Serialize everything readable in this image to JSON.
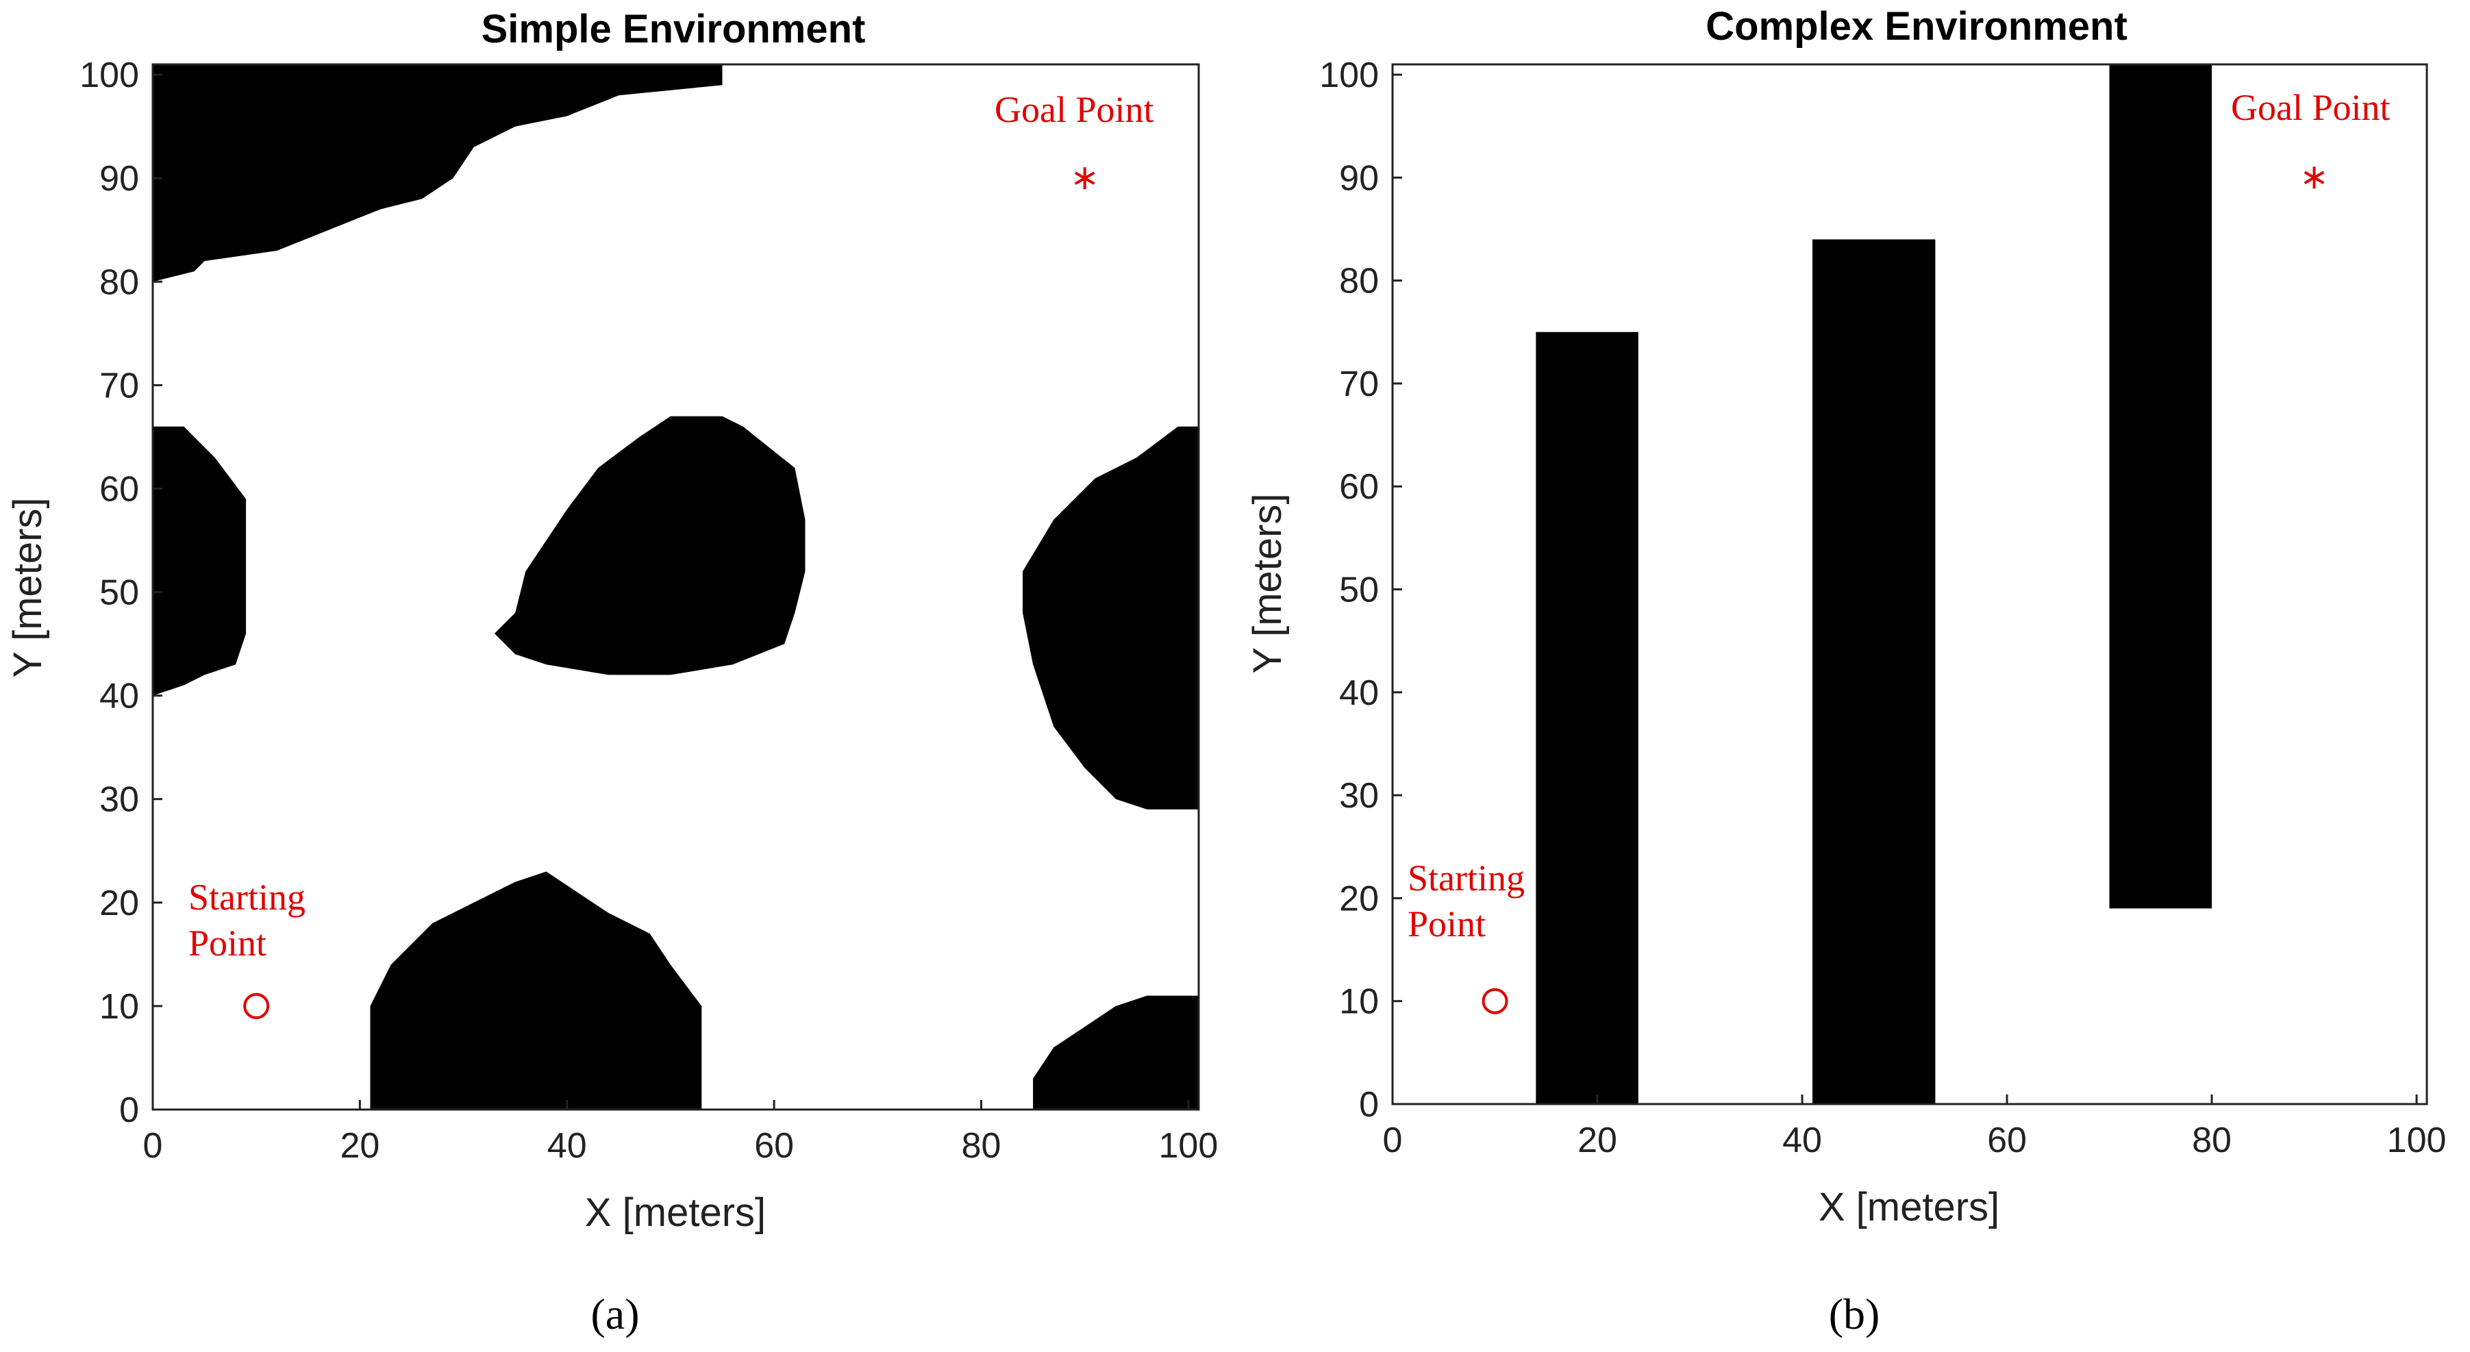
{
  "chart_data": [
    {
      "type": "occupancy-map",
      "title": "Simple Environment",
      "xlabel": "X [meters]",
      "ylabel": "Y [meters]",
      "xlim": [
        0,
        101
      ],
      "ylim": [
        0,
        101
      ],
      "xticks": [
        "0",
        "20",
        "40",
        "60",
        "80",
        "100"
      ],
      "yticks": [
        "0",
        "10",
        "20",
        "30",
        "40",
        "50",
        "60",
        "70",
        "80",
        "90",
        "100"
      ],
      "xtick_values": [
        0,
        20,
        40,
        60,
        80,
        100
      ],
      "ytick_values": [
        0,
        10,
        20,
        30,
        40,
        50,
        60,
        70,
        80,
        90,
        100
      ],
      "caption": "(a)",
      "obstacles": [
        [
          [
            0,
            101
          ],
          [
            55,
            101
          ],
          [
            55,
            99
          ],
          [
            45,
            98
          ],
          [
            40,
            96
          ],
          [
            35,
            95
          ],
          [
            31,
            93
          ],
          [
            29,
            90
          ],
          [
            26,
            88
          ],
          [
            22,
            87
          ],
          [
            17,
            85
          ],
          [
            12,
            83
          ],
          [
            5,
            82
          ],
          [
            4,
            81
          ],
          [
            0,
            80
          ]
        ],
        [
          [
            0,
            66
          ],
          [
            3,
            66
          ],
          [
            6,
            63
          ],
          [
            9,
            59
          ],
          [
            9,
            52
          ],
          [
            9,
            46
          ],
          [
            8,
            43
          ],
          [
            5,
            42
          ],
          [
            3,
            41
          ],
          [
            0,
            40
          ]
        ],
        [
          [
            35,
            48
          ],
          [
            36,
            52
          ],
          [
            40,
            58
          ],
          [
            43,
            62
          ],
          [
            47,
            65
          ],
          [
            50,
            67
          ],
          [
            55,
            67
          ],
          [
            57,
            66
          ],
          [
            62,
            62
          ],
          [
            63,
            57
          ],
          [
            63,
            52
          ],
          [
            62,
            48
          ],
          [
            61,
            45
          ],
          [
            56,
            43
          ],
          [
            50,
            42
          ],
          [
            44,
            42
          ],
          [
            38,
            43
          ],
          [
            35,
            44
          ],
          [
            33,
            46
          ],
          [
            34,
            47
          ]
        ],
        [
          [
            101,
            66
          ],
          [
            99,
            66
          ],
          [
            95,
            63
          ],
          [
            91,
            61
          ],
          [
            87,
            57
          ],
          [
            84,
            52
          ],
          [
            84,
            48
          ],
          [
            85,
            43
          ],
          [
            87,
            37
          ],
          [
            90,
            33
          ],
          [
            93,
            30
          ],
          [
            96,
            29
          ],
          [
            101,
            29
          ]
        ],
        [
          [
            21,
            0
          ],
          [
            21,
            10
          ],
          [
            23,
            14
          ],
          [
            27,
            18
          ],
          [
            31,
            20
          ],
          [
            35,
            22
          ],
          [
            38,
            23
          ],
          [
            41,
            21
          ],
          [
            44,
            19
          ],
          [
            48,
            17
          ],
          [
            50,
            14
          ],
          [
            53,
            10
          ],
          [
            53,
            0
          ]
        ],
        [
          [
            85,
            0
          ],
          [
            85,
            3
          ],
          [
            87,
            6
          ],
          [
            90,
            8
          ],
          [
            93,
            10
          ],
          [
            96,
            11
          ],
          [
            101,
            11
          ],
          [
            101,
            0
          ]
        ]
      ],
      "start": {
        "x": 10,
        "y": 10,
        "label_line1": "Starting",
        "label_line2": "Point"
      },
      "goal": {
        "x": 90,
        "y": 90,
        "label": "Goal Point"
      },
      "colors": {
        "obstacle": "#000000",
        "free": "#ffffff",
        "marker": "#e00000"
      }
    },
    {
      "type": "occupancy-map",
      "title": "Complex Environment",
      "xlabel": "X [meters]",
      "ylabel": "Y [meters]",
      "xlim": [
        0,
        101
      ],
      "ylim": [
        0,
        101
      ],
      "xticks": [
        "0",
        "20",
        "40",
        "60",
        "80",
        "100"
      ],
      "yticks": [
        "0",
        "10",
        "20",
        "30",
        "40",
        "50",
        "60",
        "70",
        "80",
        "90",
        "100"
      ],
      "xtick_values": [
        0,
        20,
        40,
        60,
        80,
        100
      ],
      "ytick_values": [
        0,
        10,
        20,
        30,
        40,
        50,
        60,
        70,
        80,
        90,
        100
      ],
      "caption": "(b)",
      "obstacles": [
        [
          [
            14,
            0
          ],
          [
            24,
            0
          ],
          [
            24,
            75
          ],
          [
            14,
            75
          ]
        ],
        [
          [
            41,
            0
          ],
          [
            53,
            0
          ],
          [
            53,
            84
          ],
          [
            41,
            84
          ]
        ],
        [
          [
            70,
            19
          ],
          [
            80,
            19
          ],
          [
            80,
            101
          ],
          [
            70,
            101
          ]
        ]
      ],
      "start": {
        "x": 10,
        "y": 10,
        "label_line1": "Starting",
        "label_line2": "Point"
      },
      "goal": {
        "x": 90,
        "y": 90,
        "label": "Goal Point"
      },
      "colors": {
        "obstacle": "#000000",
        "free": "#ffffff",
        "marker": "#e00000"
      }
    }
  ]
}
